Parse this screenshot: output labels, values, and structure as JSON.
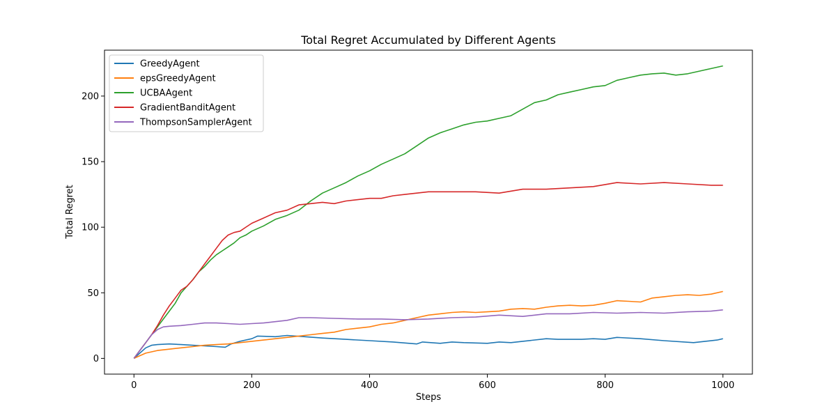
{
  "chart_data": {
    "type": "line",
    "title": "Total Regret Accumulated by Different Agents",
    "xlabel": "Steps",
    "ylabel": "Total Regret",
    "xlim": [
      -50,
      1050
    ],
    "ylim": [
      -12,
      235
    ],
    "xticks": [
      0,
      200,
      400,
      600,
      800,
      1000
    ],
    "yticks": [
      0,
      50,
      100,
      150,
      200
    ],
    "legend_position": "upper-left",
    "grid": false,
    "series": [
      {
        "name": "GreedyAgent",
        "color": "#1f77b4",
        "x": [
          0,
          10,
          20,
          30,
          40,
          60,
          80,
          100,
          120,
          140,
          155,
          165,
          180,
          200,
          210,
          240,
          260,
          290,
          320,
          360,
          400,
          440,
          480,
          490,
          520,
          540,
          560,
          600,
          620,
          640,
          660,
          700,
          720,
          760,
          780,
          800,
          820,
          860,
          900,
          950,
          970,
          990,
          1000
        ],
        "y": [
          0,
          4,
          8,
          10,
          10.5,
          11,
          10.5,
          10,
          9.5,
          9,
          8.5,
          11,
          13,
          15,
          17,
          16.5,
          17.5,
          16.5,
          15.5,
          14.5,
          13.5,
          12.5,
          11,
          12.5,
          11.5,
          12.5,
          12,
          11.5,
          12.5,
          12,
          13,
          15,
          14.5,
          14.5,
          15,
          14.5,
          16,
          15,
          13.5,
          12,
          13,
          14,
          15
        ]
      },
      {
        "name": "epsGreedyAgent",
        "color": "#ff7f0e",
        "x": [
          0,
          10,
          20,
          40,
          60,
          80,
          100,
          120,
          140,
          160,
          180,
          200,
          220,
          240,
          260,
          280,
          300,
          320,
          340,
          360,
          380,
          400,
          420,
          440,
          460,
          480,
          500,
          520,
          540,
          560,
          580,
          600,
          620,
          640,
          660,
          680,
          700,
          720,
          740,
          760,
          780,
          800,
          820,
          840,
          860,
          880,
          900,
          920,
          940,
          960,
          980,
          1000
        ],
        "y": [
          0,
          2,
          4,
          6,
          7,
          8,
          9,
          10,
          10.5,
          11,
          12,
          13,
          14,
          15,
          16,
          17,
          18,
          19,
          20,
          22,
          23,
          24,
          26,
          27,
          29,
          31,
          33,
          34,
          35,
          35.5,
          35,
          35.5,
          36,
          37.5,
          38,
          37.5,
          39,
          40,
          40.5,
          40,
          40.5,
          42,
          44,
          43.5,
          43,
          46,
          47,
          48,
          48.5,
          48,
          49,
          51
        ]
      },
      {
        "name": "UCBAAgent",
        "color": "#2ca02c",
        "x": [
          0,
          10,
          20,
          30,
          40,
          50,
          60,
          70,
          80,
          90,
          100,
          110,
          120,
          130,
          140,
          150,
          160,
          170,
          180,
          190,
          200,
          220,
          240,
          260,
          280,
          300,
          320,
          340,
          360,
          380,
          400,
          420,
          440,
          460,
          480,
          500,
          520,
          540,
          560,
          580,
          600,
          620,
          640,
          660,
          680,
          700,
          720,
          740,
          760,
          780,
          800,
          820,
          840,
          860,
          880,
          900,
          920,
          940,
          960,
          980,
          1000
        ],
        "y": [
          0,
          6,
          12,
          18,
          24,
          30,
          36,
          42,
          50,
          55,
          60,
          66,
          70,
          75,
          79,
          82,
          85,
          88,
          92,
          94,
          97,
          101,
          106,
          109,
          113,
          120,
          126,
          130,
          134,
          139,
          143,
          148,
          152,
          156,
          162,
          168,
          172,
          175,
          178,
          180,
          181,
          183,
          185,
          190,
          195,
          197,
          201,
          203,
          205,
          207,
          208,
          212,
          214,
          216,
          217,
          217.5,
          216,
          217,
          219,
          221,
          223
        ]
      },
      {
        "name": "GradientBanditAgent",
        "color": "#d62728",
        "x": [
          0,
          10,
          20,
          30,
          40,
          50,
          60,
          70,
          80,
          90,
          100,
          110,
          120,
          130,
          140,
          150,
          160,
          170,
          180,
          190,
          200,
          220,
          240,
          260,
          280,
          300,
          320,
          340,
          360,
          380,
          400,
          420,
          440,
          460,
          480,
          500,
          540,
          580,
          620,
          660,
          700,
          740,
          780,
          820,
          860,
          900,
          940,
          980,
          1000
        ],
        "y": [
          0,
          6,
          12,
          18,
          25,
          33,
          40,
          46,
          52,
          55,
          60,
          66,
          72,
          78,
          84,
          90,
          94,
          96,
          97,
          100,
          103,
          107,
          111,
          113,
          117,
          118,
          119,
          118,
          120,
          121,
          122,
          122,
          124,
          125,
          126,
          127,
          127,
          127,
          126,
          129,
          129,
          130,
          131,
          134,
          133,
          134,
          133,
          132,
          132
        ]
      },
      {
        "name": "ThompsonSamplerAgent",
        "color": "#9467bd",
        "x": [
          0,
          10,
          20,
          30,
          40,
          50,
          60,
          80,
          100,
          120,
          140,
          160,
          180,
          200,
          220,
          240,
          260,
          280,
          300,
          340,
          380,
          420,
          460,
          500,
          540,
          580,
          620,
          660,
          700,
          740,
          780,
          820,
          860,
          900,
          940,
          980,
          1000
        ],
        "y": [
          0,
          6,
          12,
          18,
          22,
          24,
          24.5,
          25,
          26,
          27,
          27,
          26.5,
          26,
          26.5,
          27,
          28,
          29,
          31,
          31,
          30.5,
          30,
          30,
          29.5,
          30,
          31,
          31.5,
          33,
          32,
          34,
          34,
          35,
          34.5,
          35,
          34.5,
          35.5,
          36,
          37
        ]
      }
    ]
  }
}
